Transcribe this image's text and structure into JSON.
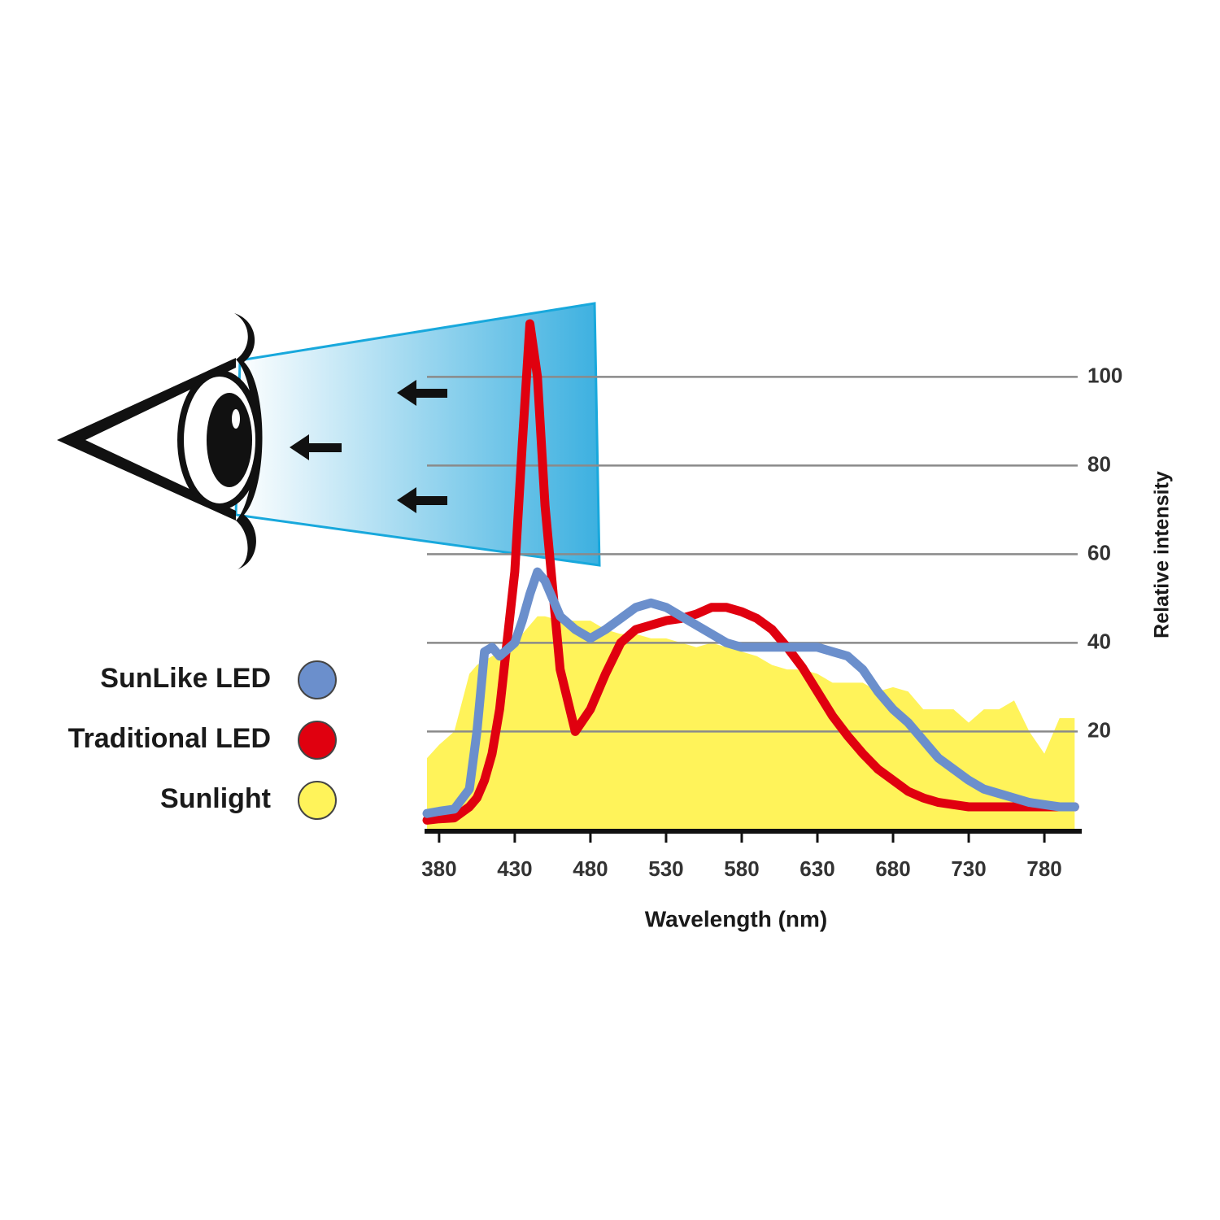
{
  "chart_data": {
    "type": "line",
    "x_label": "Wavelength (nm)",
    "y_label": "Relative intensity",
    "x": [
      372,
      380,
      390,
      400,
      405,
      410,
      415,
      420,
      430,
      435,
      440,
      445,
      450,
      460,
      470,
      480,
      490,
      500,
      510,
      520,
      530,
      540,
      550,
      560,
      570,
      580,
      590,
      600,
      610,
      620,
      630,
      640,
      650,
      660,
      670,
      680,
      690,
      700,
      710,
      720,
      730,
      740,
      750,
      760,
      770,
      780,
      790,
      800
    ],
    "series": [
      {
        "name": "Sunlight",
        "color": "#fff35a",
        "style": "area",
        "values": [
          14,
          17,
          20,
          33,
          35,
          36,
          37,
          38,
          40,
          42,
          44,
          46,
          46,
          45,
          45,
          45,
          43,
          42,
          42,
          41,
          41,
          40,
          39,
          40,
          39,
          38,
          37,
          35,
          34,
          34,
          33,
          31,
          31,
          31,
          29,
          30,
          29,
          25,
          25,
          25,
          22,
          25,
          25,
          27,
          20,
          15,
          23,
          23
        ]
      },
      {
        "name": "Traditional LED",
        "color": "#e0000f",
        "style": "line",
        "values": [
          0,
          0.3,
          0.5,
          3,
          5,
          9,
          15,
          25,
          56,
          85,
          112,
          100,
          71,
          34,
          20,
          25,
          33,
          40,
          43,
          44,
          45,
          45.5,
          46.5,
          48,
          48,
          47,
          45.5,
          43,
          39,
          34.5,
          29,
          23.5,
          19,
          15,
          11.5,
          9,
          6.5,
          5,
          4,
          3.5,
          3,
          3,
          3,
          3,
          3,
          3,
          3,
          3
        ]
      },
      {
        "name": "SunLike LED",
        "color": "#6b8fcc",
        "style": "line",
        "values": [
          1.5,
          2,
          2.5,
          7,
          20,
          38,
          39,
          37,
          40,
          45,
          51,
          56,
          54,
          46,
          43,
          41,
          43,
          45.5,
          48,
          49,
          48,
          46,
          44,
          42,
          40,
          39,
          39,
          39,
          39,
          39,
          39,
          38,
          37,
          34,
          29,
          25,
          22,
          18,
          14,
          11.5,
          9,
          7,
          6,
          5,
          4,
          3.5,
          3,
          3
        ]
      }
    ],
    "legend_order": [
      2,
      1,
      0
    ],
    "xlim": [
      372,
      802
    ],
    "ylim": [
      -2.5,
      115
    ],
    "xticks": [
      380,
      430,
      480,
      530,
      580,
      630,
      680,
      730,
      780
    ],
    "yticks": [
      20,
      40,
      60,
      80,
      100
    ],
    "grid": true
  }
}
